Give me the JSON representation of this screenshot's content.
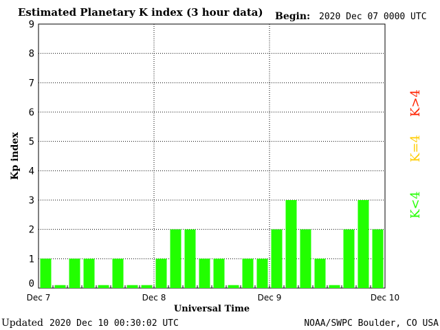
{
  "header": {
    "title": "Estimated Planetary K index (3 hour data)",
    "begin_label": "Begin:",
    "begin_value": "2020 Dec 07 0000 UTC"
  },
  "footer": {
    "updated_label": "Updated",
    "updated_value": "2020 Dec 10 00:30:02 UTC",
    "source": "NOAA/SWPC Boulder, CO USA"
  },
  "legend": {
    "low_label": "K<4",
    "mid_label": "K=4",
    "high_label": "K>4",
    "low_color": "#22ff00",
    "mid_color": "#ffcc00",
    "high_color": "#ff2200"
  },
  "chart_data": {
    "type": "bar",
    "title": "Estimated Planetary K index (3 hour data)",
    "xlabel": "Universal Time",
    "ylabel": "Kp index",
    "ylim": [
      0,
      9
    ],
    "yticks": [
      "0",
      "1",
      "2",
      "3",
      "4",
      "5",
      "6",
      "7",
      "8",
      "9"
    ],
    "x_ticks": [
      "Dec 7",
      "Dec 8",
      "Dec 9",
      "Dec 10"
    ],
    "bar_interval_hours": 3,
    "grid": "dotted",
    "bar_color": "#22ff00",
    "values": [
      1,
      0.1,
      1,
      1,
      0.1,
      1,
      0.1,
      0.1,
      1,
      2,
      2,
      1,
      1,
      0.1,
      1,
      1,
      2,
      3,
      2,
      1,
      0.1,
      2,
      3,
      2
    ]
  }
}
